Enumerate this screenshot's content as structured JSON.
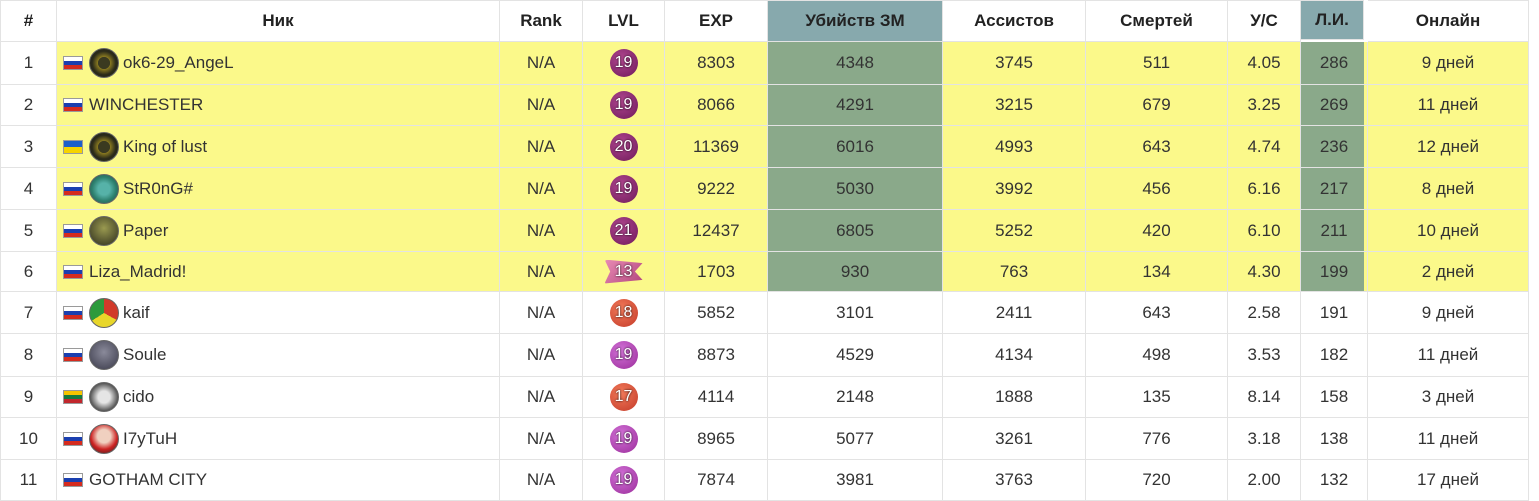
{
  "columns": [
    "#",
    "Ник",
    "Rank",
    "LVL",
    "EXP",
    "Убийств ЗМ",
    "Ассистов",
    "Смертей",
    "У/С",
    "Л.И.",
    "Онлайн"
  ],
  "colors": {
    "highlight_row": "#fbf98a",
    "highlight_col_header": "#87a9ad",
    "highlight_col_body": "#8aa98a"
  },
  "rows": [
    {
      "num": "1",
      "flag": "ru",
      "avatar": "eagle-emblem-icon",
      "nick": "ok6-29_AngeL",
      "rank": "N/A",
      "lvl": "19",
      "lvl_style": "dpurple",
      "exp": "8303",
      "kills": "4348",
      "assists": "3745",
      "deaths": "511",
      "ratio": "4.05",
      "li": "286",
      "online": "9 дней"
    },
    {
      "num": "2",
      "flag": "ru",
      "avatar": "",
      "nick": "WINCHESTER",
      "rank": "N/A",
      "lvl": "19",
      "lvl_style": "dpurple",
      "exp": "8066",
      "kills": "4291",
      "assists": "3215",
      "deaths": "679",
      "ratio": "3.25",
      "li": "269",
      "online": "11 дней"
    },
    {
      "num": "3",
      "flag": "ua",
      "avatar": "eagle-emblem-icon",
      "nick": "King of lust",
      "rank": "N/A",
      "lvl": "20",
      "lvl_style": "dpurple",
      "exp": "11369",
      "kills": "6016",
      "assists": "4993",
      "deaths": "643",
      "ratio": "4.74",
      "li": "236",
      "online": "12 дней"
    },
    {
      "num": "4",
      "flag": "ru",
      "avatar": "globe-emblem-icon",
      "nick": "StR0nG#",
      "rank": "N/A",
      "lvl": "19",
      "lvl_style": "dpurple",
      "exp": "9222",
      "kills": "5030",
      "assists": "3992",
      "deaths": "456",
      "ratio": "6.16",
      "li": "217",
      "online": "8 дней"
    },
    {
      "num": "5",
      "flag": "ru",
      "avatar": "soldier-avatar-icon",
      "nick": "Paper",
      "rank": "N/A",
      "lvl": "21",
      "lvl_style": "dpurple",
      "exp": "12437",
      "kills": "6805",
      "assists": "5252",
      "deaths": "420",
      "ratio": "6.10",
      "li": "211",
      "online": "10 дней"
    },
    {
      "num": "6",
      "flag": "ru",
      "avatar": "",
      "nick": "Liza_Madrid!",
      "rank": "N/A",
      "lvl": "13",
      "lvl_style": "pink",
      "exp": "1703",
      "kills": "930",
      "assists": "763",
      "deaths": "134",
      "ratio": "4.30",
      "li": "199",
      "online": "2 дней"
    },
    {
      "num": "7",
      "flag": "ru",
      "avatar": "rasta-avatar-icon",
      "nick": "kaif",
      "rank": "N/A",
      "lvl": "18",
      "lvl_style": "red",
      "exp": "5852",
      "kills": "3101",
      "assists": "2411",
      "deaths": "643",
      "ratio": "2.58",
      "li": "191",
      "online": "9 дней"
    },
    {
      "num": "8",
      "flag": "ru",
      "avatar": "person-avatar-icon",
      "nick": "Soule",
      "rank": "N/A",
      "lvl": "19",
      "lvl_style": "purple",
      "exp": "8873",
      "kills": "4529",
      "assists": "4134",
      "deaths": "498",
      "ratio": "3.53",
      "li": "182",
      "online": "11 дней"
    },
    {
      "num": "9",
      "flag": "lt",
      "avatar": "dog-avatar-icon",
      "nick": "cido",
      "rank": "N/A",
      "lvl": "17",
      "lvl_style": "red",
      "exp": "4114",
      "kills": "2148",
      "assists": "1888",
      "deaths": "135",
      "ratio": "8.14",
      "li": "158",
      "online": "3 дней"
    },
    {
      "num": "10",
      "flag": "ru",
      "avatar": "salute-avatar-icon",
      "nick": "I7yTuH",
      "rank": "N/A",
      "lvl": "19",
      "lvl_style": "purple",
      "exp": "8965",
      "kills": "5077",
      "assists": "3261",
      "deaths": "776",
      "ratio": "3.18",
      "li": "138",
      "online": "11 дней"
    },
    {
      "num": "11",
      "flag": "ru",
      "avatar": "",
      "nick": "GOTHAM CITY",
      "rank": "N/A",
      "lvl": "19",
      "lvl_style": "purple",
      "exp": "7874",
      "kills": "3981",
      "assists": "3763",
      "deaths": "720",
      "ratio": "2.00",
      "li": "132",
      "online": "17 дней"
    }
  ]
}
